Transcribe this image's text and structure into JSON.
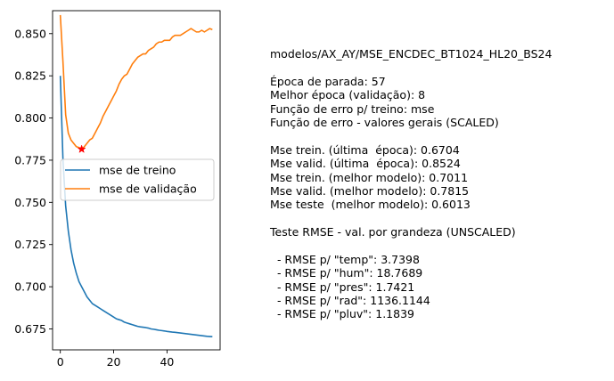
{
  "chart_data": {
    "type": "line",
    "title": "",
    "xlabel": "",
    "ylabel": "",
    "xlim": [
      -2.9,
      59.9
    ],
    "ylim": [
      0.6626,
      0.8636
    ],
    "xticks": [
      0,
      20,
      40
    ],
    "yticks": [
      0.675,
      0.7,
      0.725,
      0.75,
      0.775,
      0.8,
      0.825,
      0.85
    ],
    "ytick_labels": [
      "0.675",
      "0.700",
      "0.725",
      "0.750",
      "0.775",
      "0.800",
      "0.825",
      "0.850"
    ],
    "grid": false,
    "legend_position": "center-right",
    "series": [
      {
        "name": "mse de treino",
        "color": "#1f77b4",
        "x": [
          0,
          1,
          2,
          3,
          4,
          5,
          6,
          7,
          8,
          9,
          10,
          11,
          12,
          13,
          14,
          15,
          16,
          17,
          18,
          19,
          20,
          21,
          22,
          23,
          24,
          25,
          26,
          27,
          28,
          29,
          30,
          31,
          32,
          33,
          34,
          35,
          36,
          37,
          38,
          39,
          40,
          41,
          42,
          43,
          44,
          45,
          46,
          47,
          48,
          49,
          50,
          51,
          52,
          53,
          54,
          55,
          56,
          57
        ],
        "values": [
          0.825,
          0.775,
          0.748,
          0.733,
          0.722,
          0.714,
          0.708,
          0.703,
          0.7,
          0.697,
          0.694,
          0.692,
          0.69,
          0.689,
          0.688,
          0.687,
          0.686,
          0.685,
          0.684,
          0.683,
          0.682,
          0.681,
          0.6805,
          0.68,
          0.679,
          0.6785,
          0.678,
          0.6775,
          0.677,
          0.6765,
          0.6762,
          0.676,
          0.6758,
          0.6755,
          0.675,
          0.6748,
          0.6745,
          0.6742,
          0.674,
          0.6738,
          0.6735,
          0.6733,
          0.6731,
          0.673,
          0.6728,
          0.6726,
          0.6724,
          0.6722,
          0.672,
          0.6718,
          0.6716,
          0.6714,
          0.6712,
          0.671,
          0.6708,
          0.6706,
          0.6705,
          0.6704
        ]
      },
      {
        "name": "mse de validação",
        "color": "#ff7f0e",
        "x": [
          0,
          1,
          2,
          3,
          4,
          5,
          6,
          7,
          8,
          9,
          10,
          11,
          12,
          13,
          14,
          15,
          16,
          17,
          18,
          19,
          20,
          21,
          22,
          23,
          24,
          25,
          26,
          27,
          28,
          29,
          30,
          31,
          32,
          33,
          34,
          35,
          36,
          37,
          38,
          39,
          40,
          41,
          42,
          43,
          44,
          45,
          46,
          47,
          48,
          49,
          50,
          51,
          52,
          53,
          54,
          55,
          56,
          57
        ],
        "values": [
          0.861,
          0.833,
          0.802,
          0.791,
          0.787,
          0.785,
          0.783,
          0.7825,
          0.7815,
          0.783,
          0.785,
          0.787,
          0.788,
          0.791,
          0.794,
          0.797,
          0.801,
          0.804,
          0.807,
          0.81,
          0.813,
          0.816,
          0.82,
          0.823,
          0.825,
          0.826,
          0.829,
          0.832,
          0.834,
          0.836,
          0.837,
          0.838,
          0.838,
          0.84,
          0.841,
          0.842,
          0.844,
          0.845,
          0.845,
          0.846,
          0.846,
          0.846,
          0.848,
          0.849,
          0.849,
          0.849,
          0.85,
          0.851,
          0.852,
          0.853,
          0.852,
          0.851,
          0.851,
          0.852,
          0.851,
          0.852,
          0.853,
          0.8524
        ]
      }
    ],
    "marker": {
      "symbol": "star",
      "color": "#ff0000",
      "x": 8,
      "y": 0.7815
    }
  },
  "info_lines": [
    "modelos/AX_AY/MSE_ENCDEC_BT1024_HL20_BS24",
    "",
    "Época de parada: 57",
    "Melhor época (validação): 8",
    "Função de erro p/ treino: mse",
    "Função de erro - valores gerais (SCALED)",
    "",
    "Mse trein. (última  época): 0.6704",
    "Mse valid. (última  época): 0.8524",
    "Mse trein. (melhor modelo): 0.7011",
    "Mse valid. (melhor modelo): 0.7815",
    "Mse teste  (melhor modelo): 0.6013",
    "",
    "Teste RMSE - val. por grandeza (UNSCALED)",
    "",
    "  - RMSE p/ \"temp\": 3.7398",
    "  - RMSE p/ \"hum\": 18.7689",
    "  - RMSE p/ \"pres\": 1.7421",
    "  - RMSE p/ \"rad\": 1136.1144",
    "  - RMSE p/ \"pluv\": 1.1839"
  ]
}
